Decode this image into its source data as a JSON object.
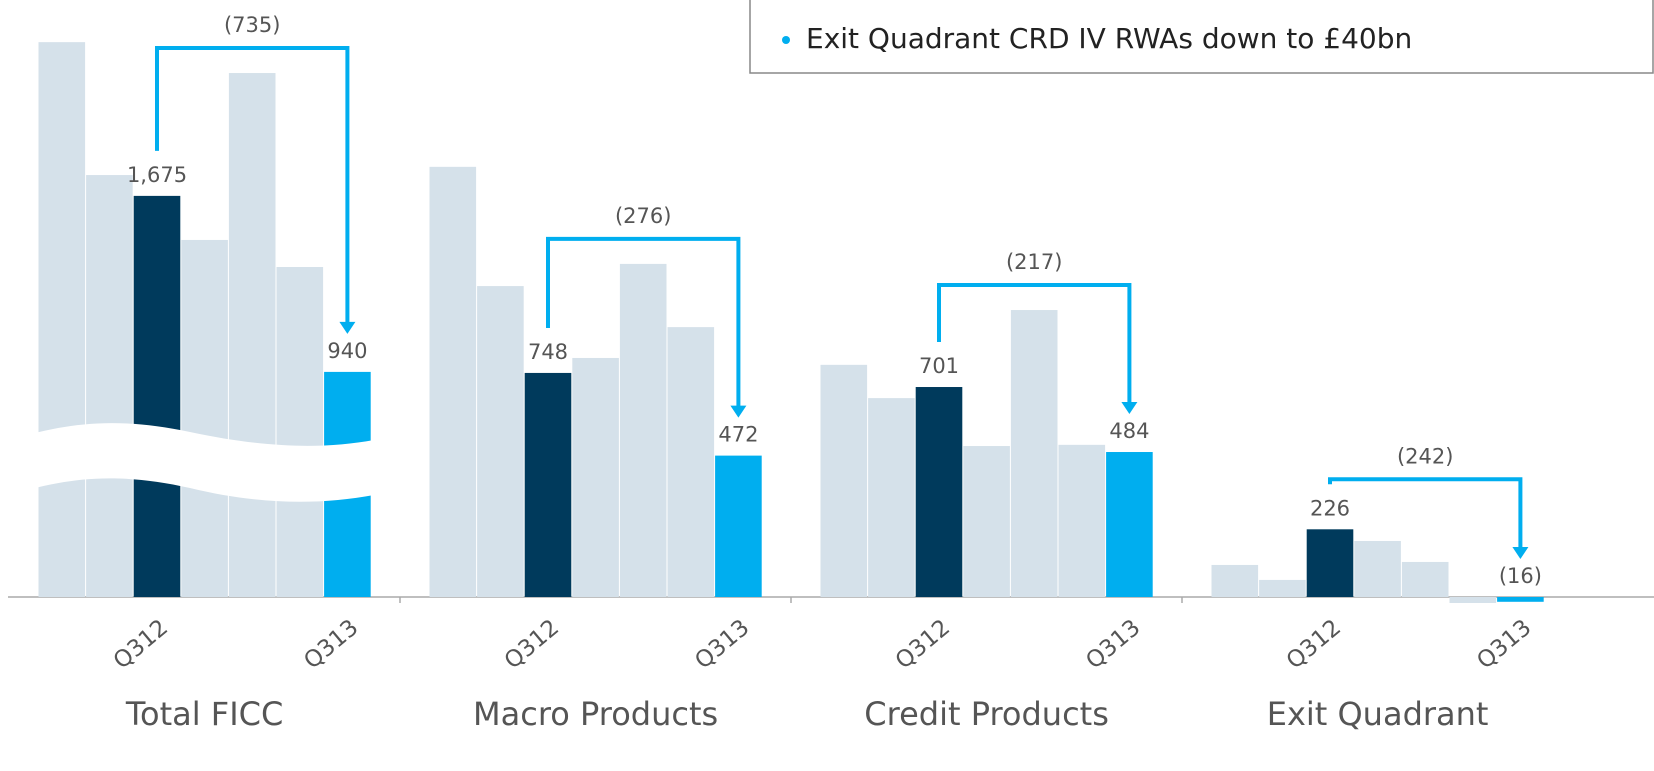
{
  "callout": "Exit Quadrant CRD IV RWAs down to £40bn",
  "chart_data": [
    {
      "type": "bar",
      "title": "Total FICC",
      "annotation": "(735)",
      "categories": [
        null,
        null,
        "Q312",
        null,
        null,
        null,
        "Q313"
      ],
      "values": [
        2317,
        1762,
        1675,
        1491,
        2188,
        1378,
        940
      ],
      "value_labels": [
        null,
        null,
        "1,675",
        null,
        null,
        null,
        "940"
      ],
      "colors": [
        "#d5e1ea",
        "#d5e1ea",
        "#003a5c",
        "#d5e1ea",
        "#d5e1ea",
        "#d5e1ea",
        "#00aeef"
      ],
      "ylim": [
        0,
        2493
      ],
      "axis_break": true
    },
    {
      "type": "bar",
      "title": "Macro Products",
      "annotation": "(276)",
      "categories": [
        null,
        null,
        "Q312",
        null,
        null,
        null,
        "Q313"
      ],
      "values": [
        1436,
        1038,
        748,
        798,
        1112,
        901,
        472
      ],
      "value_labels": [
        null,
        null,
        "748",
        null,
        null,
        null,
        "472"
      ],
      "colors": [
        "#d5e1ea",
        "#d5e1ea",
        "#003a5c",
        "#d5e1ea",
        "#d5e1ea",
        "#d5e1ea",
        "#00aeef"
      ],
      "ylim": [
        0,
        1993
      ]
    },
    {
      "type": "bar",
      "title": "Credit Products",
      "annotation": "(217)",
      "categories": [
        null,
        null,
        "Q312",
        null,
        null,
        null,
        "Q313"
      ],
      "values": [
        775,
        664,
        701,
        504,
        958,
        508,
        484
      ],
      "value_labels": [
        null,
        null,
        "701",
        null,
        null,
        null,
        "484"
      ],
      "colors": [
        "#d5e1ea",
        "#d5e1ea",
        "#003a5c",
        "#d5e1ea",
        "#d5e1ea",
        "#d5e1ea",
        "#00aeef"
      ],
      "ylim": [
        0,
        1993
      ]
    },
    {
      "type": "bar",
      "title": "Exit Quadrant",
      "annotation": "(242)",
      "categories": [
        null,
        null,
        "Q312",
        null,
        null,
        null,
        "Q313"
      ],
      "values": [
        107,
        57,
        226,
        187,
        117,
        -20,
        -16
      ],
      "value_labels": [
        null,
        null,
        "226",
        null,
        null,
        null,
        "(16)"
      ],
      "colors": [
        "#d5e1ea",
        "#d5e1ea",
        "#003a5c",
        "#d5e1ea",
        "#d5e1ea",
        "#d5e1ea",
        "#00aeef"
      ],
      "ylim": [
        0,
        1993
      ]
    }
  ]
}
